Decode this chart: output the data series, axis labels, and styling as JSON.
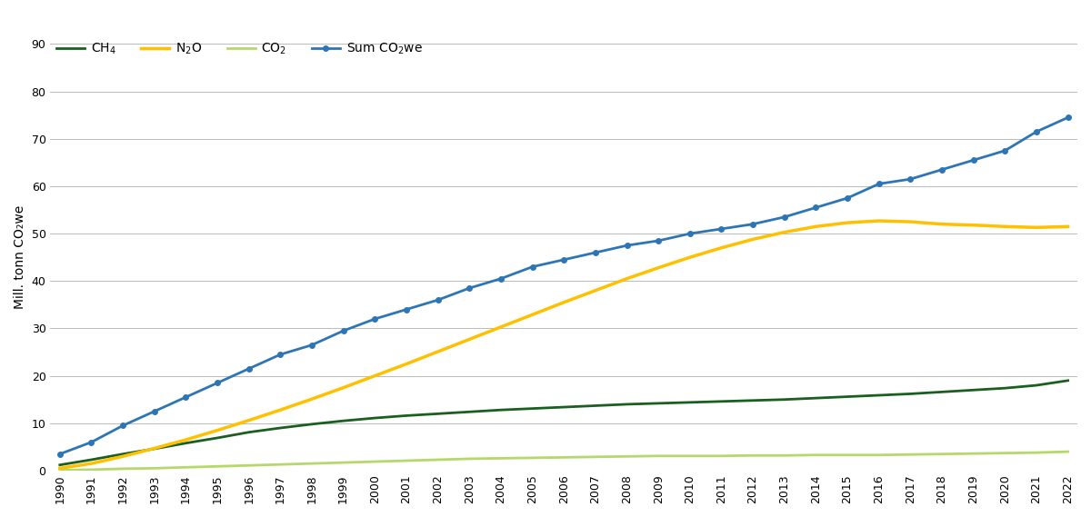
{
  "years": [
    1990,
    1991,
    1992,
    1993,
    1994,
    1995,
    1996,
    1997,
    1998,
    1999,
    2000,
    2001,
    2002,
    2003,
    2004,
    2005,
    2006,
    2007,
    2008,
    2009,
    2010,
    2011,
    2012,
    2013,
    2014,
    2015,
    2016,
    2017,
    2018,
    2019,
    2020,
    2021,
    2022
  ],
  "ch4": [
    1.2,
    2.3,
    3.5,
    4.6,
    5.8,
    6.9,
    8.1,
    9.0,
    9.8,
    10.5,
    11.1,
    11.6,
    12.0,
    12.4,
    12.8,
    13.1,
    13.4,
    13.7,
    14.0,
    14.2,
    14.4,
    14.6,
    14.8,
    15.0,
    15.3,
    15.6,
    15.9,
    16.2,
    16.6,
    17.0,
    17.4,
    18.0,
    19.0
  ],
  "n2o": [
    0.5,
    1.5,
    3.0,
    4.7,
    6.5,
    8.5,
    10.6,
    12.8,
    15.1,
    17.5,
    20.0,
    22.5,
    25.1,
    27.7,
    30.3,
    32.9,
    35.5,
    38.0,
    40.5,
    42.8,
    45.0,
    47.0,
    48.8,
    50.3,
    51.5,
    52.3,
    52.7,
    52.5,
    52.0,
    51.8,
    51.5,
    51.3,
    51.5
  ],
  "co2": [
    0.1,
    0.2,
    0.4,
    0.5,
    0.7,
    0.9,
    1.1,
    1.3,
    1.5,
    1.7,
    1.9,
    2.1,
    2.3,
    2.5,
    2.6,
    2.7,
    2.8,
    2.9,
    3.0,
    3.1,
    3.1,
    3.1,
    3.2,
    3.2,
    3.3,
    3.3,
    3.3,
    3.4,
    3.5,
    3.6,
    3.7,
    3.8,
    4.0
  ],
  "sum_co2we": [
    3.5,
    6.0,
    9.5,
    12.5,
    15.5,
    18.5,
    21.5,
    24.5,
    26.5,
    29.5,
    32.0,
    34.0,
    36.0,
    38.5,
    40.5,
    43.0,
    44.5,
    46.0,
    47.5,
    48.5,
    50.0,
    51.0,
    52.0,
    53.5,
    55.5,
    57.5,
    60.5,
    61.5,
    63.5,
    65.5,
    67.5,
    71.5,
    74.5
  ],
  "ch4_color": "#1a5e20",
  "n2o_color": "#FFC000",
  "co2_color": "#b5d86b",
  "sum_color": "#2e75b6",
  "ylabel": "Mill. tonn CO₂we",
  "ylim": [
    0,
    90
  ],
  "yticks": [
    0,
    10,
    20,
    30,
    40,
    50,
    60,
    70,
    80,
    90
  ],
  "grid_color": "#b0b0b0",
  "background_color": "#ffffff",
  "legend_labels": [
    "CH$_4$",
    "N$_2$O",
    "CO$_2$",
    "Sum CO$_2$we"
  ]
}
